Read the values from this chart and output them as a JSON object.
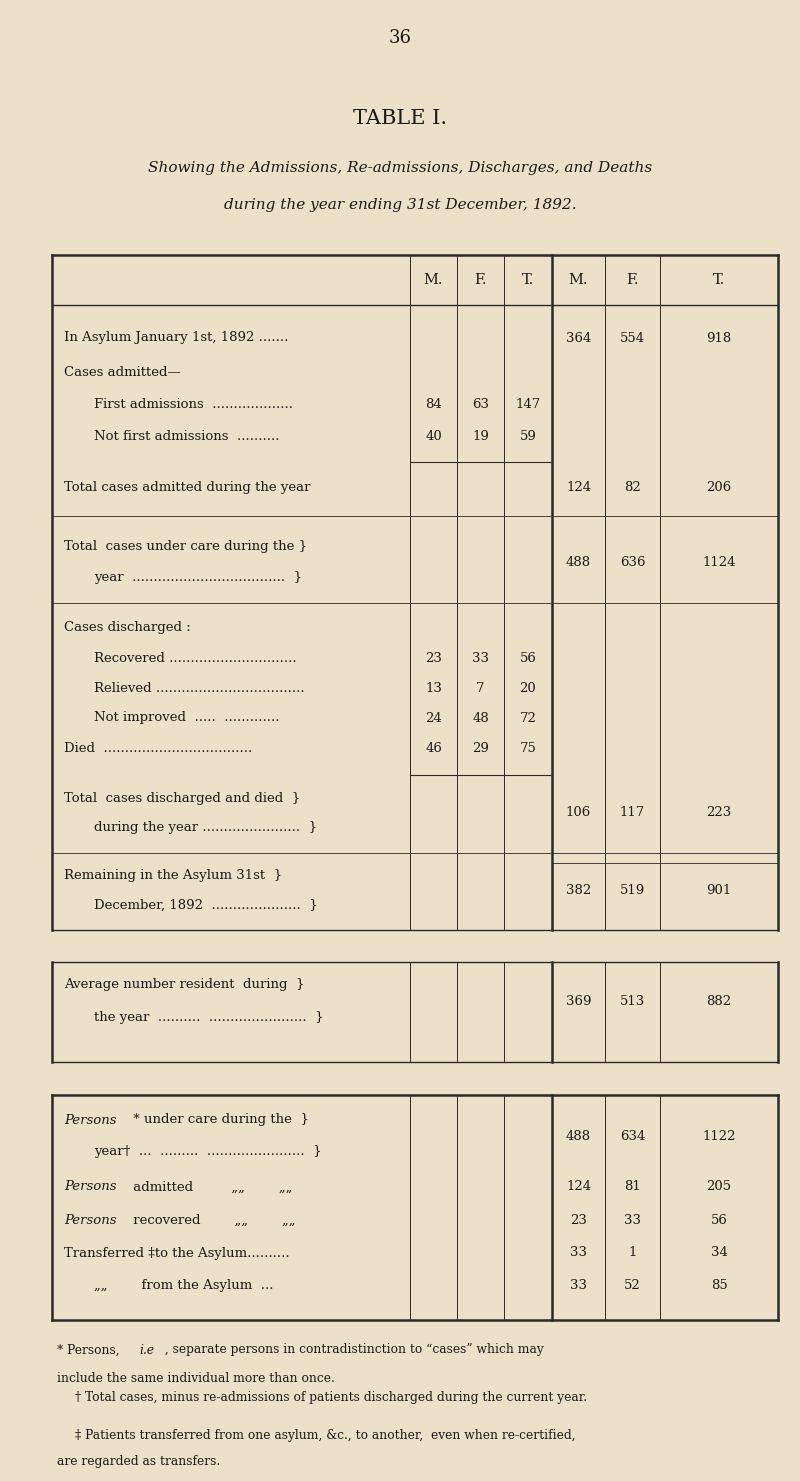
{
  "page_number": "36",
  "title": "TABLE I.",
  "subtitle_line1": "Showing the Admissions, Re-admissions, Discharges, and Deaths",
  "subtitle_line2": "during the year ending 31st December, 1892.",
  "bg_color": "#ede0c8",
  "text_color": "#1a1a1a",
  "col_headers_1": [
    "M.",
    "F.",
    "T."
  ],
  "col_headers_2": [
    "M.",
    "F.",
    "T."
  ],
  "footnote1a": "* Persons, ",
  "footnote1b": "i.e",
  "footnote1c": " , separate persons in contradistinction to “cases” which may",
  "footnote1d": "include the same individual more than once.",
  "footnote2": "† Total cases, minus re-admissions of patients discharged during the current year.",
  "footnote3": "‡ Patients transferred from one asylum, &c., to another,  even when re-certified,",
  "footnote4": "are regarded as transfers."
}
